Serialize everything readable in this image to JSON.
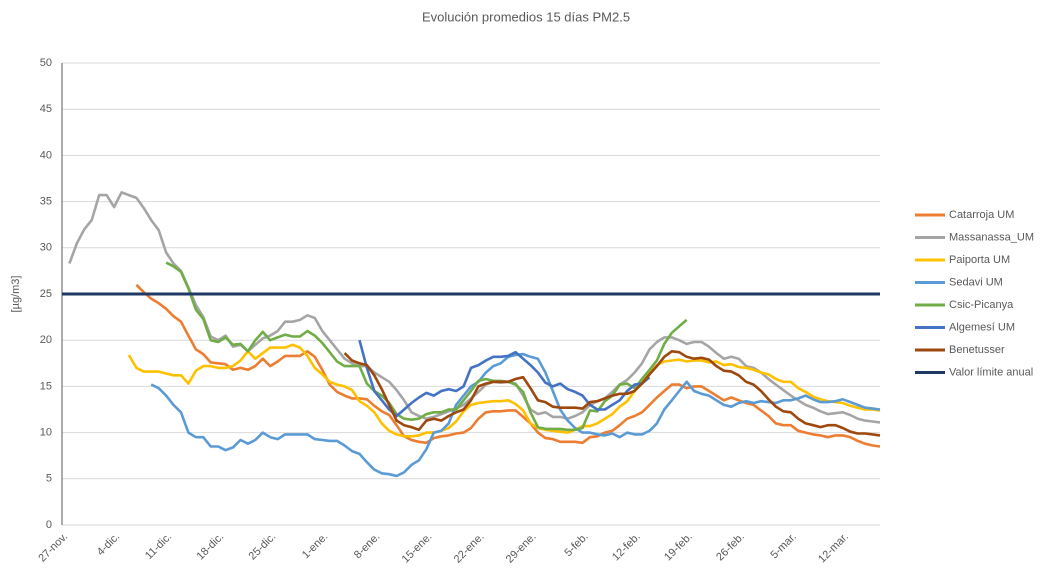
{
  "chart_data": {
    "type": "line",
    "title": "Evolución promedios 15 días PM2.5",
    "y_label": "[µg/m3]",
    "categories": [
      "27-nov.",
      null,
      null,
      null,
      null,
      null,
      null,
      "4-dic.",
      null,
      null,
      null,
      null,
      null,
      null,
      "11-dic.",
      null,
      null,
      null,
      null,
      null,
      null,
      "18-dic.",
      null,
      null,
      null,
      null,
      null,
      null,
      "25-dic.",
      null,
      null,
      null,
      null,
      null,
      null,
      "1-ene.",
      null,
      null,
      null,
      null,
      null,
      null,
      "8-ene.",
      null,
      null,
      null,
      null,
      null,
      null,
      "15-ene.",
      null,
      null,
      null,
      null,
      null,
      null,
      "22-ene.",
      null,
      null,
      null,
      null,
      null,
      null,
      "29-ene.",
      null,
      null,
      null,
      null,
      null,
      null,
      "5-feb.",
      null,
      null,
      null,
      null,
      null,
      null,
      "12-feb.",
      null,
      null,
      null,
      null,
      null,
      null,
      "19-feb.",
      null,
      null,
      null,
      null,
      null,
      null,
      "26-feb.",
      null,
      null,
      null,
      null,
      null,
      null,
      "5-mar.",
      null,
      null,
      null,
      null,
      null,
      null,
      "12-mar.",
      null,
      null,
      null,
      null,
      null
    ],
    "ylim": [
      0,
      50
    ],
    "yticks": [
      0,
      5,
      10,
      15,
      20,
      25,
      30,
      35,
      40,
      45,
      50
    ],
    "grid": true,
    "legend": "right",
    "series": [
      {
        "name": "Catarroja UM",
        "color": "#ed7d31",
        "values": [
          null,
          null,
          null,
          null,
          null,
          null,
          null,
          null,
          null,
          null,
          26,
          25.2,
          24.5,
          24,
          23.4,
          22.6,
          22,
          20.5,
          19,
          18.5,
          17.6,
          17.5,
          17.4,
          16.8,
          17,
          16.8,
          17.2,
          18,
          17.2,
          17.7,
          18.3,
          18.3,
          18.3,
          18.8,
          18.2,
          16.8,
          15.2,
          14.4,
          14,
          13.7,
          13.7,
          13.6,
          12.9,
          12.3,
          11.9,
          10.8,
          9.6,
          9.2,
          9,
          8.9,
          9.4,
          9.6,
          9.7,
          9.9,
          10,
          10.5,
          11.5,
          12.2,
          12.3,
          12.3,
          12.4,
          12.4,
          11.7,
          11,
          10,
          9.4,
          9.3,
          9,
          9,
          9,
          8.9,
          9.5,
          9.6,
          10,
          10.2,
          10.8,
          11.5,
          11.8,
          12.2,
          13,
          13.8,
          14.5,
          15.2,
          15.2,
          14.8,
          15,
          15,
          14.5,
          14,
          13.5,
          13.8,
          13.5,
          13.2,
          13,
          12.4,
          11.8,
          11,
          10.8,
          10.8,
          10.2,
          10,
          9.8,
          9.7,
          9.5,
          9.7,
          9.7,
          9.5,
          9.1,
          8.8,
          8.6,
          8.5
        ]
      },
      {
        "name": "Massanassa_UM",
        "color": "#a5a5a5",
        "values": [
          null,
          28.3,
          30.5,
          32,
          33,
          35.7,
          35.7,
          34.4,
          36,
          35.7,
          35.4,
          34.3,
          33,
          31.9,
          29.5,
          28.3,
          27.5,
          25.7,
          23.8,
          22.5,
          20.4,
          20,
          20.5,
          19.3,
          19.5,
          18.8,
          19.5,
          20.2,
          20.5,
          21,
          22,
          22,
          22.2,
          22.7,
          22.4,
          21,
          20,
          19,
          18,
          17.5,
          17.2,
          17.2,
          16.5,
          16,
          15.5,
          14.6,
          13.5,
          12.2,
          11.8,
          11.5,
          11.7,
          12,
          12.3,
          12.6,
          13,
          13.7,
          14.4,
          15.2,
          15.5,
          15.4,
          15.5,
          15.3,
          14,
          12.5,
          12,
          12.2,
          11.7,
          11.7,
          11.5,
          11.8,
          12.2,
          13,
          13.4,
          13.7,
          14.4,
          15.2,
          15.7,
          16.5,
          17.5,
          19,
          19.8,
          20.3,
          20.3,
          20,
          19.6,
          19.8,
          19.8,
          19.3,
          18.6,
          18,
          18.2,
          18,
          17.2,
          17,
          16.5,
          15.8,
          15.2,
          14.6,
          14,
          13.5,
          13,
          12.7,
          12.3,
          12,
          12.1,
          12.2,
          11.9,
          11.5,
          11.3,
          11.2,
          11.1
        ]
      },
      {
        "name": "Paiporta UM",
        "color": "#ffc000",
        "values": [
          null,
          null,
          null,
          null,
          null,
          null,
          null,
          null,
          null,
          18.4,
          17,
          16.6,
          16.6,
          16.6,
          16.4,
          16.2,
          16.2,
          15.3,
          16.7,
          17.2,
          17.2,
          17,
          17,
          17.2,
          17.8,
          18.8,
          18,
          18.6,
          19.2,
          19.2,
          19.2,
          19.5,
          19.2,
          18.3,
          17,
          16.3,
          15.5,
          15.2,
          15,
          14.6,
          13.4,
          12.9,
          12.2,
          11,
          10.2,
          9.8,
          9.6,
          9.6,
          9.7,
          10,
          10,
          10.2,
          10.5,
          11.2,
          12.3,
          13,
          13.2,
          13.3,
          13.4,
          13.4,
          13.5,
          13.1,
          12.4,
          11,
          10.5,
          10.3,
          10.2,
          10.1,
          10,
          10.3,
          10.7,
          10.7,
          11,
          11.5,
          12,
          12.8,
          13.4,
          14.5,
          15.5,
          16.5,
          17.3,
          17.7,
          17.8,
          17.9,
          17.7,
          17.8,
          17.8,
          17.6,
          17.7,
          17.3,
          17.4,
          17.1,
          17,
          16.8,
          16.5,
          16.3,
          15.8,
          15.5,
          15.5,
          14.8,
          14.4,
          13.9,
          13.6,
          13.4,
          13.3,
          13.2,
          12.9,
          12.7,
          12.5,
          12.5,
          12.4
        ]
      },
      {
        "name": "Sedavi UM",
        "color": "#5b9bd5",
        "values": [
          null,
          null,
          null,
          null,
          null,
          null,
          null,
          null,
          null,
          null,
          null,
          null,
          15.2,
          14.8,
          14,
          13,
          12.2,
          10,
          9.5,
          9.5,
          8.5,
          8.5,
          8.1,
          8.4,
          9.2,
          8.8,
          9.2,
          10,
          9.5,
          9.3,
          9.8,
          9.8,
          9.8,
          9.8,
          9.3,
          9.2,
          9.1,
          9.1,
          8.6,
          8,
          7.7,
          6.8,
          6,
          5.6,
          5.5,
          5.3,
          5.7,
          6.5,
          7,
          8.2,
          10,
          10.2,
          11,
          13,
          14,
          15,
          15.5,
          16.5,
          17.2,
          17.5,
          18.2,
          18.4,
          18.5,
          18.2,
          18,
          16.5,
          14.5,
          12.5,
          11.3,
          10.5,
          10,
          10,
          9.8,
          9.7,
          9.9,
          9.5,
          10,
          9.8,
          9.8,
          10.2,
          11,
          12.5,
          13.5,
          14.5,
          15.5,
          14.5,
          14.2,
          14,
          13.5,
          13,
          12.8,
          13.2,
          13.4,
          13.2,
          13.4,
          13.3,
          13.2,
          13.5,
          13.5,
          13.7,
          14,
          13.6,
          13.3,
          13.3,
          13.4,
          13.6,
          13.3,
          13,
          12.7,
          12.6,
          12.5
        ]
      },
      {
        "name": "Csic-Picanya",
        "color": "#70ad47",
        "values": [
          null,
          null,
          null,
          null,
          null,
          null,
          null,
          null,
          null,
          null,
          null,
          null,
          null,
          null,
          28.4,
          28,
          27.4,
          25.6,
          23.3,
          22.3,
          20,
          19.8,
          20.3,
          19.5,
          19.6,
          18.8,
          20,
          20.9,
          20,
          20.3,
          20.6,
          20.4,
          20.4,
          21,
          20.5,
          19.7,
          18.7,
          17.7,
          17.2,
          17.2,
          17.2,
          15.3,
          14.5,
          14,
          13.2,
          12,
          11.5,
          11.4,
          11.5,
          12,
          12.2,
          12.2,
          12.5,
          12.5,
          13.5,
          14.5,
          15.6,
          15.8,
          15.6,
          15.6,
          15.5,
          15.2,
          14.4,
          12.2,
          10.6,
          10.4,
          10.4,
          10.4,
          10.3,
          10.3,
          10.5,
          12.4,
          12.3,
          13.4,
          14,
          15.2,
          15.3,
          14.8,
          15.8,
          16.8,
          17.8,
          19.6,
          20.8,
          21.5,
          22.2,
          null,
          null,
          null,
          null,
          null,
          null,
          null,
          null,
          null,
          null,
          null,
          null,
          null,
          null,
          null,
          null,
          null,
          null,
          null,
          null,
          null,
          null,
          null,
          null,
          null,
          null
        ]
      },
      {
        "name": "Algemesí UM",
        "color": "#4472c4",
        "values": [
          null,
          null,
          null,
          null,
          null,
          null,
          null,
          null,
          null,
          null,
          null,
          null,
          null,
          null,
          null,
          null,
          null,
          null,
          null,
          null,
          null,
          null,
          null,
          null,
          null,
          null,
          null,
          null,
          null,
          null,
          null,
          null,
          null,
          null,
          null,
          null,
          null,
          null,
          null,
          null,
          20,
          17,
          14.5,
          13.5,
          12.5,
          11.8,
          12.5,
          13.2,
          13.8,
          14.3,
          14,
          14.5,
          14.7,
          14.5,
          15,
          17,
          17.3,
          17.8,
          18.2,
          18.2,
          18.3,
          18.7,
          18,
          17.3,
          16.5,
          15.4,
          15,
          15.3,
          14.7,
          14.4,
          14,
          13,
          12.5,
          12.5,
          13,
          13.5,
          14.5,
          15.2,
          15.3,
          16,
          null,
          null,
          null,
          null,
          null,
          null,
          null,
          null,
          null,
          null,
          null,
          null,
          null,
          null,
          null,
          null,
          null,
          null,
          null,
          null,
          null,
          null,
          null,
          null,
          null,
          null,
          null,
          null,
          null,
          null,
          null
        ]
      },
      {
        "name": "Benetusser",
        "color": "#9e480e",
        "values": [
          null,
          null,
          null,
          null,
          null,
          null,
          null,
          null,
          null,
          null,
          null,
          null,
          null,
          null,
          null,
          null,
          null,
          null,
          null,
          null,
          null,
          null,
          null,
          null,
          null,
          null,
          null,
          null,
          null,
          null,
          null,
          null,
          null,
          null,
          null,
          null,
          null,
          null,
          18.6,
          17.8,
          17.5,
          17.3,
          16.2,
          14.7,
          13,
          11.3,
          10.8,
          10.6,
          10.3,
          11.3,
          11.5,
          11.3,
          11.8,
          12.2,
          12.5,
          13.5,
          15,
          15.3,
          15.5,
          15.5,
          15.5,
          15.8,
          16,
          14.8,
          13.5,
          13.3,
          12.8,
          12.7,
          12.7,
          12.7,
          12.6,
          13.3,
          13.4,
          13.7,
          14,
          14.2,
          14.2,
          14.5,
          15.3,
          16.3,
          17.2,
          18.2,
          18.8,
          18.7,
          18.2,
          18,
          18.1,
          17.9,
          17.2,
          16.7,
          16.6,
          16.2,
          15.5,
          15.2,
          14.5,
          13.6,
          12.8,
          12.3,
          12.2,
          11.5,
          11,
          10.8,
          10.6,
          10.8,
          10.8,
          10.5,
          10.1,
          9.9,
          9.9,
          9.8,
          9.7
        ]
      },
      {
        "name": "Valor límite anual",
        "color": "#203864",
        "values": [
          25,
          25,
          25,
          25,
          25,
          25,
          25,
          25,
          25,
          25,
          25,
          25,
          25,
          25,
          25,
          25,
          25,
          25,
          25,
          25,
          25,
          25,
          25,
          25,
          25,
          25,
          25,
          25,
          25,
          25,
          25,
          25,
          25,
          25,
          25,
          25,
          25,
          25,
          25,
          25,
          25,
          25,
          25,
          25,
          25,
          25,
          25,
          25,
          25,
          25,
          25,
          25,
          25,
          25,
          25,
          25,
          25,
          25,
          25,
          25,
          25,
          25,
          25,
          25,
          25,
          25,
          25,
          25,
          25,
          25,
          25,
          25,
          25,
          25,
          25,
          25,
          25,
          25,
          25,
          25,
          25,
          25,
          25,
          25,
          25,
          25,
          25,
          25,
          25,
          25,
          25,
          25,
          25,
          25,
          25,
          25,
          25,
          25,
          25,
          25,
          25,
          25,
          25,
          25,
          25,
          25,
          25,
          25,
          25,
          25,
          25
        ]
      }
    ]
  }
}
